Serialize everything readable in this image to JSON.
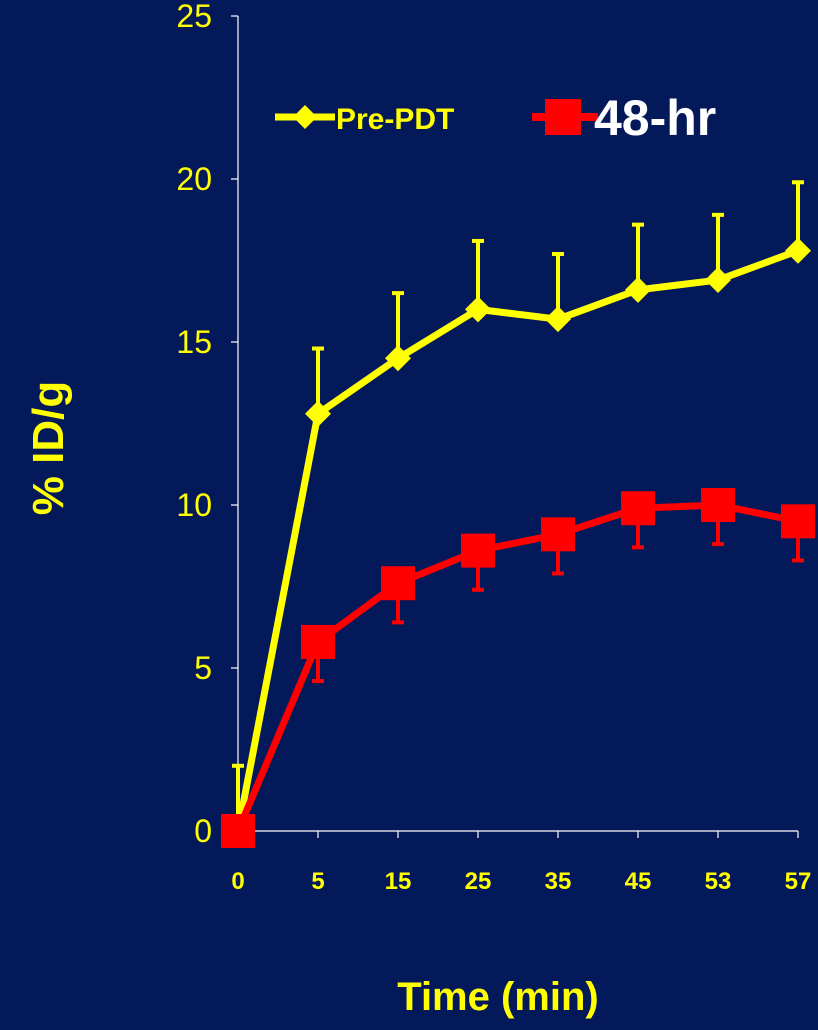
{
  "colors": {
    "background": "#04195a",
    "axis": "#ffffff",
    "pre_pdt": "#ffff00",
    "hr48": "#ff0000",
    "text": "#ffff00",
    "legend_48_text": "#ffffff"
  },
  "chart_data": {
    "type": "line",
    "title": "",
    "xlabel": "Time (min)",
    "ylabel": "% ID/g",
    "ylim": [
      0,
      25
    ],
    "yticks": [
      "0",
      "5",
      "10",
      "15",
      "20",
      "25"
    ],
    "categories": [
      "0",
      "5",
      "15",
      "25",
      "35",
      "45",
      "53",
      "57"
    ],
    "grid": false,
    "legend_position": "top",
    "series": [
      {
        "name": "Pre-PDT",
        "marker": "diamond",
        "color": "#ffff00",
        "values": [
          0,
          12.8,
          14.5,
          16.0,
          15.7,
          16.6,
          16.9,
          17.8
        ],
        "error_plus": [
          2.0,
          2.0,
          2.0,
          2.1,
          2.0,
          2.0,
          2.0,
          2.1
        ]
      },
      {
        "name": "48-hr",
        "marker": "square",
        "color": "#ff0000",
        "values": [
          0,
          5.8,
          7.6,
          8.6,
          9.1,
          9.9,
          10.0,
          9.5
        ],
        "error_minus": [
          0,
          1.2,
          1.2,
          1.2,
          1.2,
          1.2,
          1.2,
          1.2
        ]
      }
    ]
  }
}
